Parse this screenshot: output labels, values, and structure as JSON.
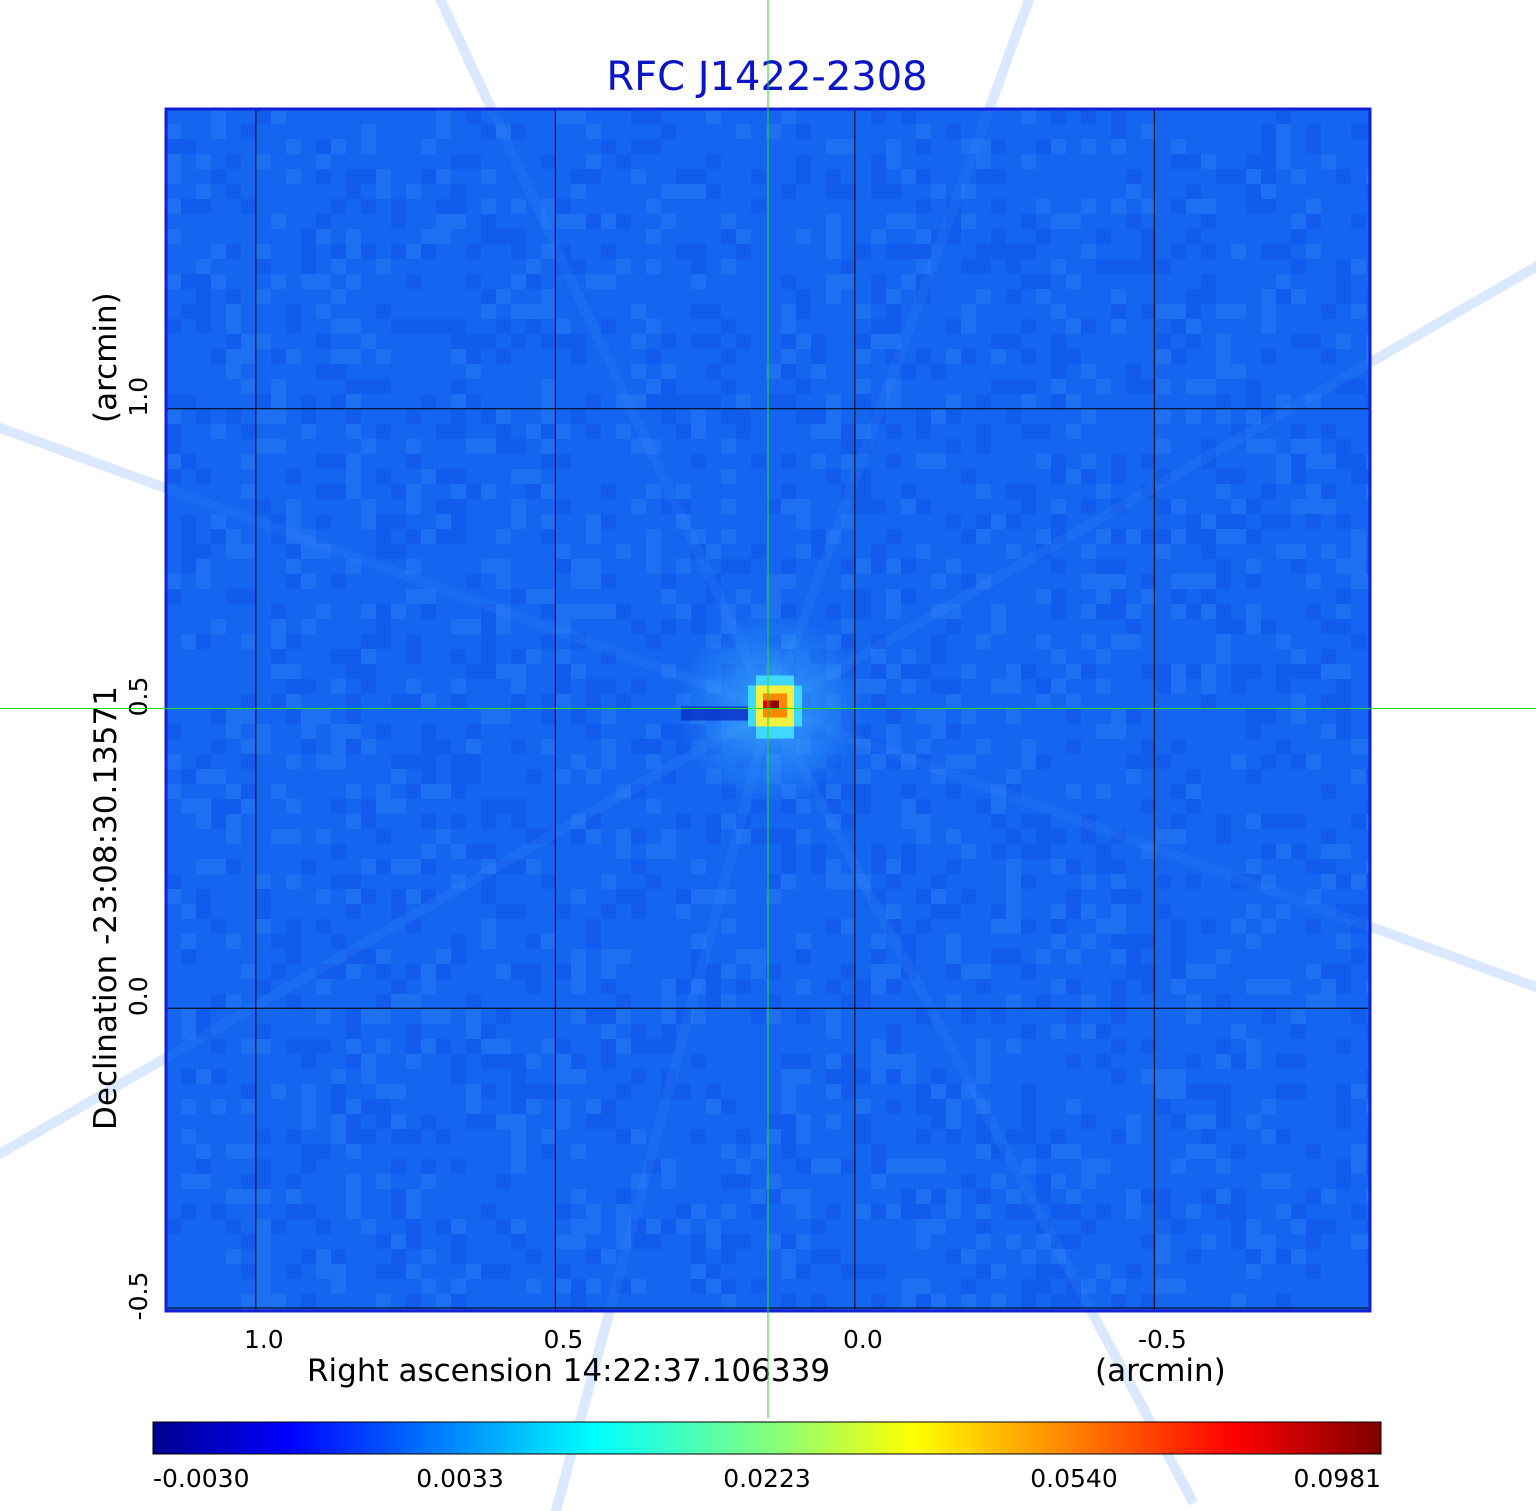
{
  "chart_data": {
    "type": "heatmap",
    "title": "RFC J1422-2308",
    "xlabel": "Right ascension  14:22:37.106339",
    "xunit": "(arcmin)",
    "ylabel": "Declination  -23:08:30.13571",
    "yunit": "(arcmin)",
    "x_ticks": [
      1.0,
      0.5,
      0.0,
      -0.5
    ],
    "x_tick_labels": [
      "1.0",
      "0.5",
      "0.0",
      "-0.5"
    ],
    "y_ticks": [
      1.0,
      0.5,
      0.0,
      -0.5
    ],
    "y_tick_labels": [
      "1.0",
      "0.5",
      "0.0",
      "-0.5"
    ],
    "xlim": [
      1.15,
      -0.86
    ],
    "ylim": [
      -0.505,
      1.5
    ],
    "grid": true,
    "colormap": "jet",
    "colorbar": {
      "ticks": [
        -0.003,
        0.0033,
        0.0223,
        0.054,
        0.0981
      ],
      "labels": [
        "-0.0030",
        "0.0033",
        "0.0223",
        "0.0540",
        "0.0981"
      ]
    },
    "source": {
      "x": 0.14,
      "y": 0.5,
      "peak": 0.0981
    },
    "crosshair": {
      "x": 0.145,
      "y": 0.5
    }
  },
  "colors": {
    "title": "#0b14c8",
    "background_map": "#1466f0",
    "frame": "#1420d8",
    "grid": "#000000",
    "crosshair": "#22dd22"
  }
}
